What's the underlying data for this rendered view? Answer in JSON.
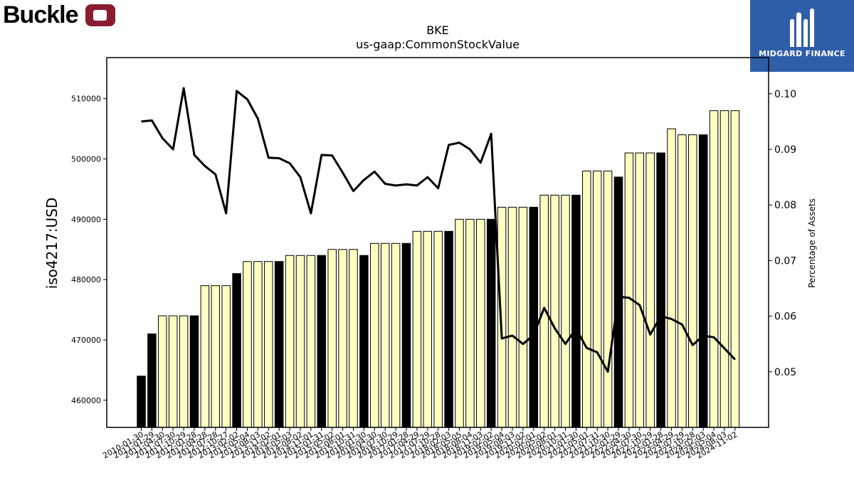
{
  "logos": {
    "left": "Buckle",
    "right": "MIDGARD FINANCE"
  },
  "chart_data": {
    "type": "bar",
    "title": "BKE",
    "subtitle": "us-gaap:CommonStockValue",
    "ylabel": "iso4217:USD",
    "y2label": "Percentage of Assets",
    "ylim": [
      455500,
      516800
    ],
    "y2lim": [
      0.04,
      0.1065
    ],
    "yticks": [
      460000,
      470000,
      480000,
      490000,
      500000,
      510000
    ],
    "y2ticks": [
      0.05,
      0.06,
      0.07,
      0.08,
      0.09,
      0.1
    ],
    "grid": false,
    "colors": {
      "bar_black": "#000000",
      "bar_fill": "#ffffc0",
      "bar_edge": "#000000",
      "line": "#000000",
      "badge": "#8a1c2f",
      "brand_blue": "#2f5ea8"
    },
    "x_labels": [
      "2010-01-30",
      "2011-01-29",
      "2011-04-30",
      "2011-07-30",
      "2011-10-29",
      "2012-01-28",
      "2012-04-28",
      "2012-07-28",
      "2012-10-27",
      "2013-02-02",
      "2013-05-04",
      "2013-08-03",
      "2013-11-02",
      "2014-02-01",
      "2014-05-03",
      "2014-08-02",
      "2014-11-01",
      "2015-01-31",
      "2015-05-02",
      "2015-08-01",
      "2015-10-31",
      "2016-01-30",
      "2016-04-30",
      "2016-07-30",
      "2016-10-29",
      "2017-01-28",
      "2017-04-29",
      "2017-07-29",
      "2017-10-28",
      "2018-02-03",
      "2018-05-05",
      "2018-08-04",
      "2018-11-03",
      "2019-02-02",
      "2019-05-04",
      "2019-08-03",
      "2019-11-02",
      "2020-02-01",
      "2020-05-02",
      "2020-08-01",
      "2020-10-31",
      "2021-01-30",
      "2021-05-01",
      "2021-07-31",
      "2021-10-30",
      "2022-01-29",
      "2022-04-30",
      "2022-07-30",
      "2022-10-29",
      "2023-01-28",
      "2023-04-29",
      "2023-07-29",
      "2023-10-28",
      "2024-02-03",
      "2024-05-04",
      "2024-08-03",
      "2024-11-02"
    ],
    "bar_values": [
      464000,
      471000,
      474000,
      474000,
      474000,
      474000,
      479000,
      479000,
      479000,
      481000,
      483000,
      483000,
      483000,
      483000,
      484000,
      484000,
      484000,
      484000,
      485000,
      485000,
      485000,
      484000,
      486000,
      486000,
      486000,
      486000,
      488000,
      488000,
      488000,
      488000,
      490000,
      490000,
      490000,
      490000,
      492000,
      492000,
      492000,
      492000,
      494000,
      494000,
      494000,
      494000,
      498000,
      498000,
      498000,
      497000,
      501000,
      501000,
      501000,
      501000,
      505000,
      504000,
      504000,
      504000,
      508000,
      508000,
      508000
    ],
    "bar_is_annual": [
      true,
      true,
      false,
      false,
      false,
      true,
      false,
      false,
      false,
      true,
      false,
      false,
      false,
      true,
      false,
      false,
      false,
      true,
      false,
      false,
      false,
      true,
      false,
      false,
      false,
      true,
      false,
      false,
      false,
      true,
      false,
      false,
      false,
      true,
      false,
      false,
      false,
      true,
      false,
      false,
      false,
      true,
      false,
      false,
      false,
      true,
      false,
      false,
      false,
      true,
      false,
      false,
      false,
      true,
      false,
      false,
      false
    ],
    "line_values": [
      0.095,
      0.0952,
      0.092,
      0.09,
      0.101,
      0.089,
      0.087,
      0.0855,
      0.0785,
      0.1005,
      0.099,
      0.0955,
      0.0885,
      0.0884,
      0.0875,
      0.085,
      0.0785,
      0.089,
      0.0889,
      0.0858,
      0.0825,
      0.0845,
      0.086,
      0.0838,
      0.0835,
      0.0837,
      0.0835,
      0.085,
      0.083,
      0.0908,
      0.0912,
      0.09,
      0.0876,
      0.0928,
      0.056,
      0.0565,
      0.055,
      0.0566,
      0.0615,
      0.0578,
      0.055,
      0.0578,
      0.0543,
      0.0535,
      0.05,
      0.0635,
      0.0633,
      0.062,
      0.0567,
      0.06,
      0.0595,
      0.0585,
      0.0548,
      0.0565,
      0.0562,
      0.0542,
      0.0522
    ]
  }
}
